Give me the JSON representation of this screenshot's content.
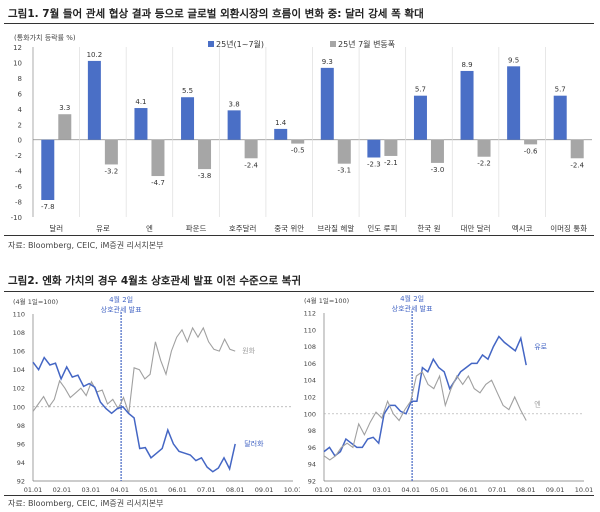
{
  "figure1": {
    "title": "그림1.  7월 들어 관세 협상 결과 등으로 글로벌 외환시장의 흐름이 변화 중: 달러 강세 폭 확대",
    "source": "자료: Bloomberg, CEIC, iM증권 리서치본부"
  },
  "figure2": {
    "title": "그림2.  엔화 가치의 경우 4월초 상호관세 발표 이전 수준으로 복귀",
    "source": "자료: Bloomberg, CEIC, iM증권 리서치본부"
  },
  "colors": {
    "blue": "#4a6fc6",
    "gray": "#a6a6a6",
    "line_blue": "#4466c4",
    "line_gray": "#a0a0a0"
  },
  "chart_data": [
    {
      "type": "bar",
      "title": "",
      "ylabel": "(통화가치 등락률 %)",
      "ylim": [
        -10,
        12
      ],
      "yticks": [
        12,
        10,
        8,
        6,
        4,
        2,
        0,
        -2,
        -4,
        -6,
        -8,
        -10
      ],
      "categories": [
        "달러",
        "유로",
        "엔",
        "파운드",
        "호주달러",
        "중국 위안",
        "브라질 헤알",
        "인도 루피",
        "한국 원",
        "대만 달러",
        "멕시코",
        "이머징 통화"
      ],
      "series": [
        {
          "name": "25년(1~7월)",
          "values": [
            -7.8,
            10.2,
            4.1,
            5.5,
            3.8,
            1.4,
            9.3,
            -2.3,
            5.7,
            8.9,
            9.5,
            5.7
          ]
        },
        {
          "name": "25년 7월 변동폭",
          "values": [
            3.3,
            -3.2,
            -4.7,
            -3.8,
            -2.4,
            -0.5,
            -3.1,
            -2.1,
            -3.0,
            -2.2,
            -0.6,
            -2.4
          ]
        }
      ],
      "legend": "top-center"
    },
    {
      "type": "line",
      "ylabel": "(4월 1일=100)",
      "ylim": [
        92,
        110
      ],
      "yticks": [
        110,
        108,
        106,
        104,
        102,
        100,
        98,
        96,
        94,
        92
      ],
      "xticks": [
        "01.01",
        "02.01",
        "03.01",
        "04.01",
        "05.01",
        "06.01",
        "07.01",
        "08.01",
        "09.01",
        "10.01"
      ],
      "annotation": {
        "line1": "4월 2일",
        "line2": "상호관세 발표",
        "x_month": 3.05
      },
      "baseline": 100,
      "series": [
        {
          "name": "원화",
          "color": "gray",
          "values": [
            99.5,
            100.3,
            101.1,
            100,
            100.8,
            102.8,
            102,
            101,
            101.5,
            102,
            101.2,
            102.7,
            101.6,
            101.8,
            100.3,
            100.8,
            99.8,
            101,
            99.3,
            104.2,
            104,
            103,
            103.5,
            107,
            105,
            103.5,
            106,
            107.5,
            108.3,
            107,
            108.5,
            107.5,
            108.5,
            107,
            106.2,
            106,
            107.3,
            106.2,
            106
          ]
        },
        {
          "name": "달러화",
          "color": "blue",
          "values": [
            104.8,
            104,
            105.3,
            104.5,
            104.7,
            103,
            104.3,
            103.2,
            103.4,
            102.2,
            102.5,
            102.1,
            100.5,
            99.8,
            99.3,
            99.8,
            100,
            99.3,
            98.8,
            95.5,
            95.6,
            94.5,
            95,
            95.5,
            97.5,
            96,
            95.2,
            95,
            94.8,
            94.2,
            94.5,
            93.5,
            93,
            93.4,
            94.5,
            93.3,
            96
          ]
        }
      ]
    },
    {
      "type": "line",
      "ylabel": "(4월 1일=100)",
      "ylim": [
        92,
        112
      ],
      "yticks": [
        112,
        110,
        108,
        106,
        104,
        102,
        100,
        98,
        96,
        94,
        92
      ],
      "xticks": [
        "01.01",
        "02.01",
        "03.01",
        "04.01",
        "05.01",
        "06.01",
        "07.01",
        "08.01",
        "09.01",
        "10.01"
      ],
      "annotation": {
        "line1": "4월 2일",
        "line2": "상호관세 발표",
        "x_month": 3.05
      },
      "baseline": 100,
      "series": [
        {
          "name": "유로",
          "color": "blue",
          "values": [
            95.5,
            96,
            95,
            95.5,
            97,
            96.5,
            96,
            96,
            97,
            97.2,
            96.5,
            100,
            101,
            101,
            100.3,
            100,
            101.5,
            101.5,
            105.5,
            105,
            106.5,
            105.5,
            105,
            103,
            104,
            105,
            105.5,
            106,
            106,
            107,
            106.5,
            108,
            109.2,
            108.5,
            108,
            107.5,
            109,
            105.8
          ]
        },
        {
          "name": "엔",
          "color": "gray",
          "values": [
            95,
            94.5,
            95,
            96,
            96.5,
            96,
            98.8,
            97.5,
            99,
            100.2,
            99.5,
            101.5,
            100,
            99.2,
            100.5,
            101.5,
            104.5,
            105,
            103.5,
            103,
            104.5,
            101,
            103,
            104.5,
            103.5,
            104.5,
            103,
            102.5,
            103.5,
            104,
            102.5,
            101,
            100.5,
            102,
            100.5,
            99.2
          ]
        }
      ]
    }
  ]
}
